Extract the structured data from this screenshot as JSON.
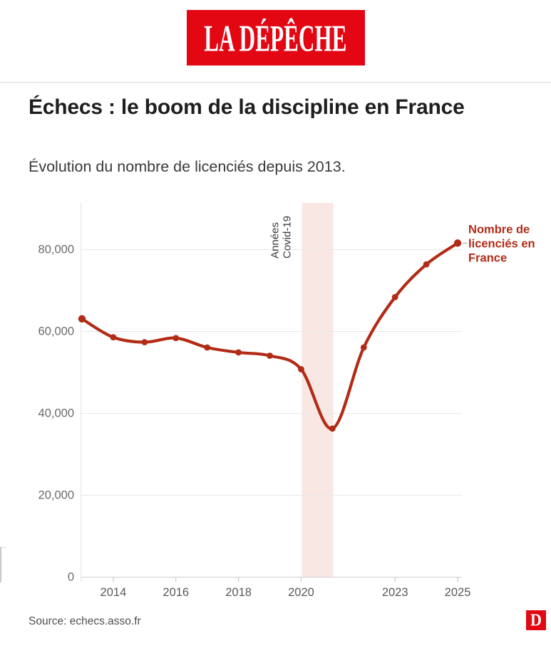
{
  "header": {
    "logo_text": "LA DÉPÊCHE",
    "brand_color": "#e30613"
  },
  "article": {
    "title": "Échecs : le boom de la discipline en France",
    "subtitle": "Évolution du nombre de licenciés depuis 2013."
  },
  "chart_data": {
    "type": "line",
    "title": "Échecs : le boom de la discipline en France",
    "subtitle": "Évolution du nombre de licenciés depuis 2013.",
    "x": [
      2013,
      2014,
      2015,
      2016,
      2017,
      2018,
      2019,
      2020,
      2021,
      2022,
      2023,
      2024,
      2025
    ],
    "series": [
      {
        "name": "Nombre de licenciés en France",
        "values": [
          63000,
          58500,
          57300,
          58300,
          56000,
          54800,
          54000,
          50700,
          36200,
          56000,
          68300,
          76300,
          81500
        ]
      }
    ],
    "series_label_lines": [
      "Nombre de",
      "licenciés en",
      "France"
    ],
    "annotation": {
      "lines": [
        "Années",
        "Covid-19"
      ],
      "band_x_range": [
        2020,
        2021
      ]
    },
    "y_ticks": [
      0,
      20000,
      40000,
      60000,
      80000
    ],
    "y_tick_labels": [
      "0",
      "20,000",
      "40,000",
      "60,000",
      "80,000"
    ],
    "x_tick_labels": [
      "2014",
      "2016",
      "2018",
      "2020",
      "2023",
      "2025"
    ],
    "xlabel": "",
    "ylabel": "",
    "ylim": [
      0,
      91000
    ],
    "xlim": [
      2012.9,
      2025.2
    ],
    "grid": "horizontal",
    "legend_position": "end-of-line",
    "colors": {
      "line": "#b22b16",
      "point": "#b22b16",
      "label": "#b22b16",
      "band": "#f9e7e4",
      "grid": "#e8e8e8",
      "baseline": "#cfcfcf",
      "tick": "#c9c9c9",
      "axis_text": "#6a6a6a",
      "annotation_text": "#3d3d3d",
      "leader": "#9a9a9a"
    }
  },
  "footer": {
    "source": "Source: echecs.asso.fr",
    "logo_letter": "D"
  }
}
